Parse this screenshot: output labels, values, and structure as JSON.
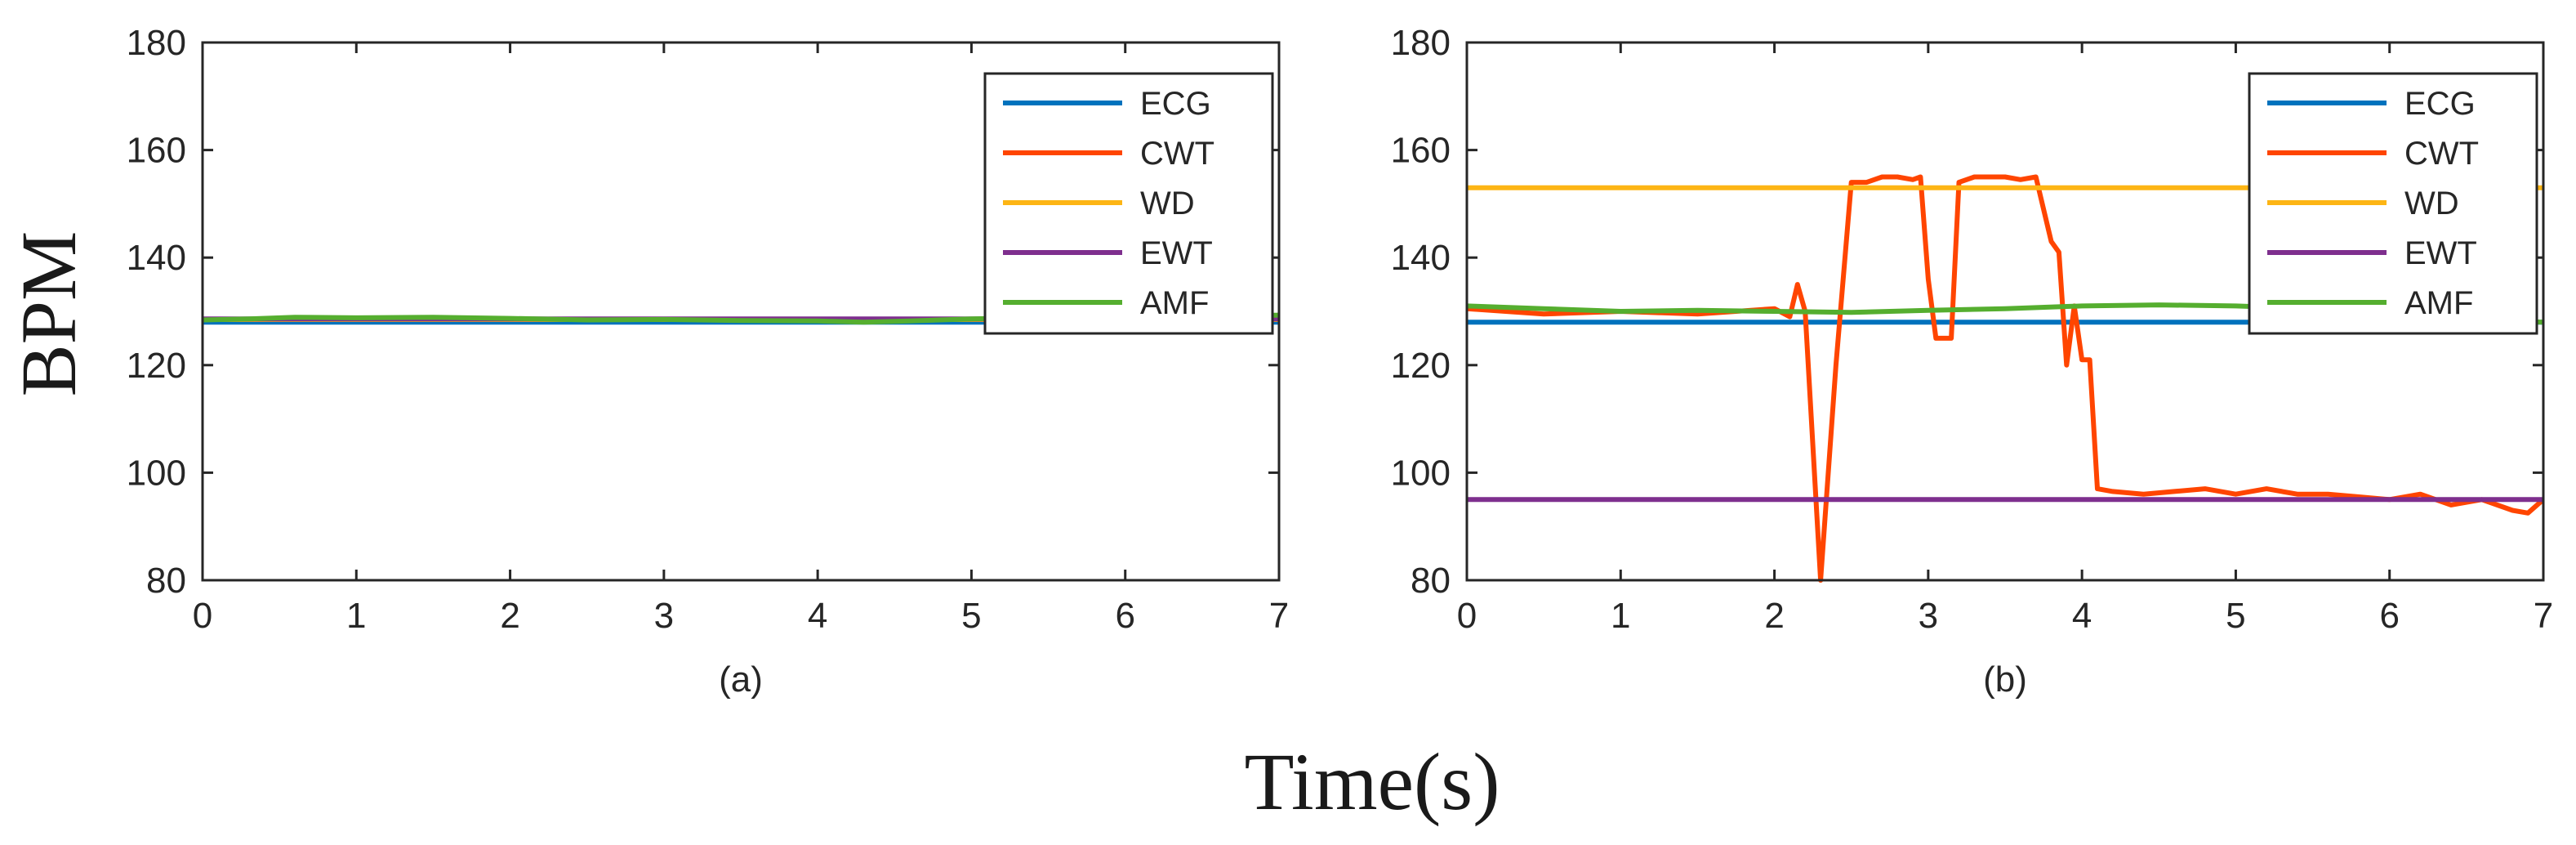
{
  "figure": {
    "ylabel": "BPM",
    "xlabel": "Time(s)"
  },
  "colors": {
    "ECG": "#0072BD",
    "CWT": "#FF4500",
    "WD": "#FDB515",
    "EWT": "#7E2F8E",
    "AMF": "#55AE2F"
  },
  "chart_data": [
    {
      "type": "line",
      "panel_label": "(a)",
      "xlim": [
        0,
        7
      ],
      "ylim": [
        80,
        180
      ],
      "xticks": [
        "0",
        "1",
        "2",
        "3",
        "4",
        "5",
        "6",
        "7"
      ],
      "yticks": [
        "80",
        "100",
        "120",
        "140",
        "160",
        "180"
      ],
      "legend": [
        "ECG",
        "CWT",
        "WD",
        "EWT",
        "AMF"
      ],
      "legend_position": "top-right",
      "series": [
        {
          "name": "ECG",
          "x": [
            0,
            7
          ],
          "y": [
            128,
            128
          ]
        },
        {
          "name": "CWT",
          "x": [
            0,
            7
          ],
          "y": [
            128.5,
            128.5
          ]
        },
        {
          "name": "WD",
          "x": [
            0,
            7
          ],
          "y": [
            128.5,
            128.5
          ]
        },
        {
          "name": "EWT",
          "x": [
            0,
            7
          ],
          "y": [
            128.6,
            128.6
          ]
        },
        {
          "name": "AMF",
          "x": [
            0,
            0.3,
            0.6,
            1.0,
            1.5,
            2.0,
            2.5,
            3.0,
            3.5,
            4.0,
            4.3,
            4.6,
            5.0,
            5.5,
            6.0,
            6.5,
            7.0
          ],
          "y": [
            128.4,
            128.6,
            128.9,
            128.8,
            128.9,
            128.7,
            128.4,
            128.5,
            128.3,
            128.2,
            128.0,
            128.2,
            128.6,
            128.9,
            128.8,
            129.0,
            129.3
          ]
        }
      ]
    },
    {
      "type": "line",
      "panel_label": "(b)",
      "xlim": [
        0,
        7
      ],
      "ylim": [
        80,
        180
      ],
      "xticks": [
        "0",
        "1",
        "2",
        "3",
        "4",
        "5",
        "6",
        "7"
      ],
      "yticks": [
        "80",
        "100",
        "120",
        "140",
        "160",
        "180"
      ],
      "legend": [
        "ECG",
        "CWT",
        "WD",
        "EWT",
        "AMF"
      ],
      "legend_position": "top-right",
      "series": [
        {
          "name": "ECG",
          "x": [
            0,
            7
          ],
          "y": [
            128,
            128
          ]
        },
        {
          "name": "CWT",
          "x": [
            0,
            0.5,
            1.0,
            1.5,
            2.0,
            2.1,
            2.15,
            2.2,
            2.3,
            2.4,
            2.5,
            2.6,
            2.7,
            2.8,
            2.9,
            2.95,
            3.0,
            3.05,
            3.15,
            3.2,
            3.3,
            3.5,
            3.6,
            3.7,
            3.8,
            3.85,
            3.9,
            3.95,
            4.0,
            4.05,
            4.1,
            4.2,
            4.4,
            4.6,
            4.8,
            5.0,
            5.2,
            5.4,
            5.6,
            5.8,
            6.0,
            6.2,
            6.4,
            6.6,
            6.8,
            6.9,
            7.0
          ],
          "y": [
            130.5,
            129.5,
            130,
            129.5,
            130.5,
            129,
            135,
            130,
            80,
            120,
            154,
            154,
            155,
            155,
            154.5,
            155,
            136,
            125,
            125,
            154,
            155,
            155,
            154.5,
            155,
            143,
            141,
            120,
            131,
            121,
            121,
            97,
            96.5,
            96,
            96.5,
            97,
            96,
            97,
            96,
            96,
            95.5,
            95,
            96,
            94,
            95,
            93,
            92.5,
            95
          ]
        },
        {
          "name": "WD",
          "x": [
            0,
            7
          ],
          "y": [
            153,
            153
          ]
        },
        {
          "name": "EWT",
          "x": [
            0,
            7
          ],
          "y": [
            95,
            95
          ]
        },
        {
          "name": "AMF",
          "x": [
            0,
            0.5,
            1.0,
            1.5,
            2.0,
            2.5,
            3.0,
            3.5,
            4.0,
            4.5,
            5.0,
            5.5,
            6.0,
            6.5,
            7.0
          ],
          "y": [
            131,
            130.5,
            130,
            130.2,
            130,
            129.8,
            130.2,
            130.5,
            131,
            131.2,
            131,
            130.5,
            129.5,
            128.5,
            128
          ]
        }
      ]
    }
  ]
}
